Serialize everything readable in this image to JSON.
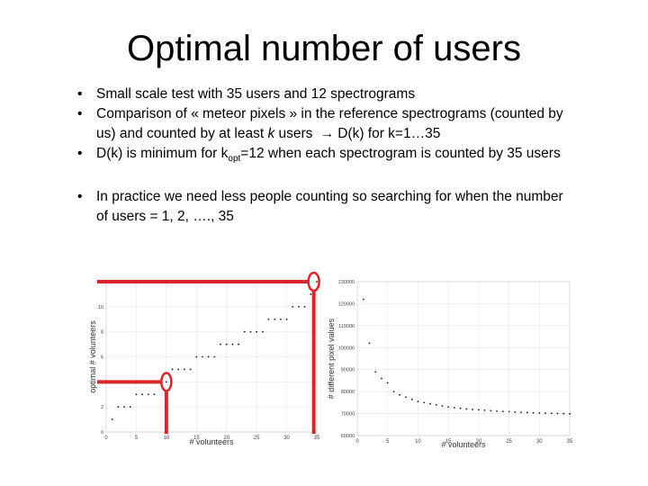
{
  "title": "Optimal number of users",
  "bullets": {
    "b1": "Small scale test with 35 users and 12 spectrograms",
    "b2a": "Comparison of « meteor pixels » in the reference spectrograms (counted by us) and counted by at least ",
    "b2k": "k",
    "b2b": " users",
    "b2arrow": "→",
    "b2c": "D(k) for k=1…35",
    "b3a": "D(k) is minimum for k",
    "b3sub": "opt",
    "b3b": "=12 when each spectrogram is counted by 35 users",
    "b4": "In practice we need less people counting so searching for when the number of users = 1, 2, …., 35"
  },
  "colors": {
    "highlight": "#d9262a",
    "points": "#1a1a1a",
    "grid": "#e6e6e6"
  },
  "chart_data": [
    {
      "type": "scatter",
      "title": "",
      "xlabel": "# volunteers",
      "ylabel": "optimal # volunteers",
      "xlim": [
        0,
        35
      ],
      "ylim": [
        0,
        12
      ],
      "xticks": [
        "0",
        "5",
        "10",
        "15",
        "20",
        "25",
        "30",
        "35"
      ],
      "yticks": [
        "0",
        "2",
        "4",
        "6",
        "8",
        "10",
        "12"
      ],
      "x": [
        1,
        2,
        3,
        4,
        5,
        6,
        7,
        8,
        9,
        10,
        11,
        12,
        13,
        14,
        15,
        16,
        17,
        18,
        19,
        20,
        21,
        22,
        23,
        24,
        25,
        26,
        27,
        28,
        29,
        30,
        31,
        32,
        33,
        34,
        35
      ],
      "y": [
        1,
        2,
        2,
        2,
        3,
        3,
        3,
        3,
        4,
        4,
        5,
        5,
        5,
        5,
        6,
        6,
        6,
        6,
        7,
        7,
        7,
        7,
        8,
        8,
        8,
        8,
        9,
        9,
        9,
        9,
        10,
        10,
        10,
        11,
        12
      ],
      "annotations": [
        "highlight circle at x=10",
        "highlight circle at x=35"
      ]
    },
    {
      "type": "scatter",
      "title": "",
      "xlabel": "# volunteers",
      "ylabel": "# different pixel values",
      "xlim": [
        0,
        35
      ],
      "ylim": [
        60000,
        130000
      ],
      "xticks": [
        "0",
        "5",
        "10",
        "15",
        "20",
        "25",
        "30",
        "35"
      ],
      "yticks": [
        "60000",
        "70000",
        "80000",
        "90000",
        "100000",
        "110000",
        "120000",
        "130000"
      ],
      "x": [
        1,
        2,
        3,
        4,
        5,
        6,
        7,
        8,
        9,
        10,
        11,
        12,
        13,
        14,
        15,
        16,
        17,
        18,
        19,
        20,
        21,
        22,
        23,
        24,
        25,
        26,
        27,
        28,
        29,
        30,
        31,
        32,
        33,
        34,
        35
      ],
      "y": [
        122000,
        102000,
        89000,
        86000,
        84000,
        80000,
        78500,
        77500,
        76500,
        75500,
        75000,
        74500,
        74000,
        73500,
        73000,
        72700,
        72400,
        72100,
        71900,
        71700,
        71500,
        71300,
        71100,
        71000,
        70900,
        70700,
        70600,
        70500,
        70400,
        70300,
        70200,
        70100,
        70050,
        70000,
        69900
      ]
    }
  ]
}
